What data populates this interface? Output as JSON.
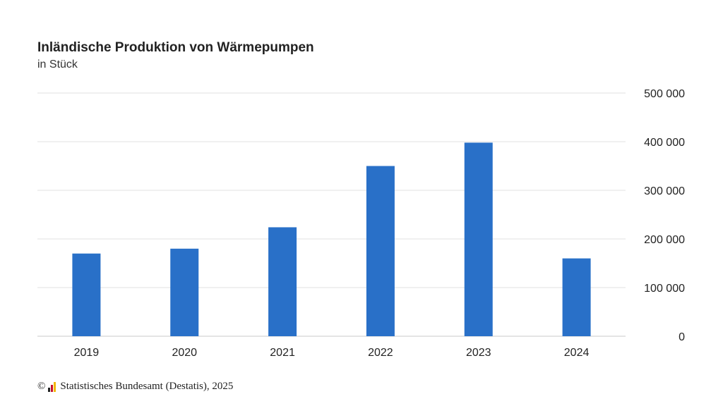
{
  "chart_data": {
    "type": "bar",
    "title": "Inländische Produktion von Wärmepumpen",
    "subtitle": "in Stück",
    "categories": [
      "2019",
      "2020",
      "2021",
      "2022",
      "2023",
      "2024"
    ],
    "values": [
      170000,
      180000,
      224000,
      350000,
      398000,
      160000
    ],
    "ylim": [
      0,
      500000
    ],
    "yticks": [
      0,
      100000,
      200000,
      300000,
      400000,
      500000
    ],
    "ytick_labels": [
      "0",
      "100 000",
      "200 000",
      "300 000",
      "400 000",
      "500 000"
    ],
    "y_axis_position": "right",
    "grid": true,
    "bar_color": "#2970c8"
  },
  "footer": {
    "copyright_symbol": "©",
    "source": "Statistisches Bundesamt (Destatis), 2025",
    "logo_icon": "destatis-logo-icon"
  }
}
